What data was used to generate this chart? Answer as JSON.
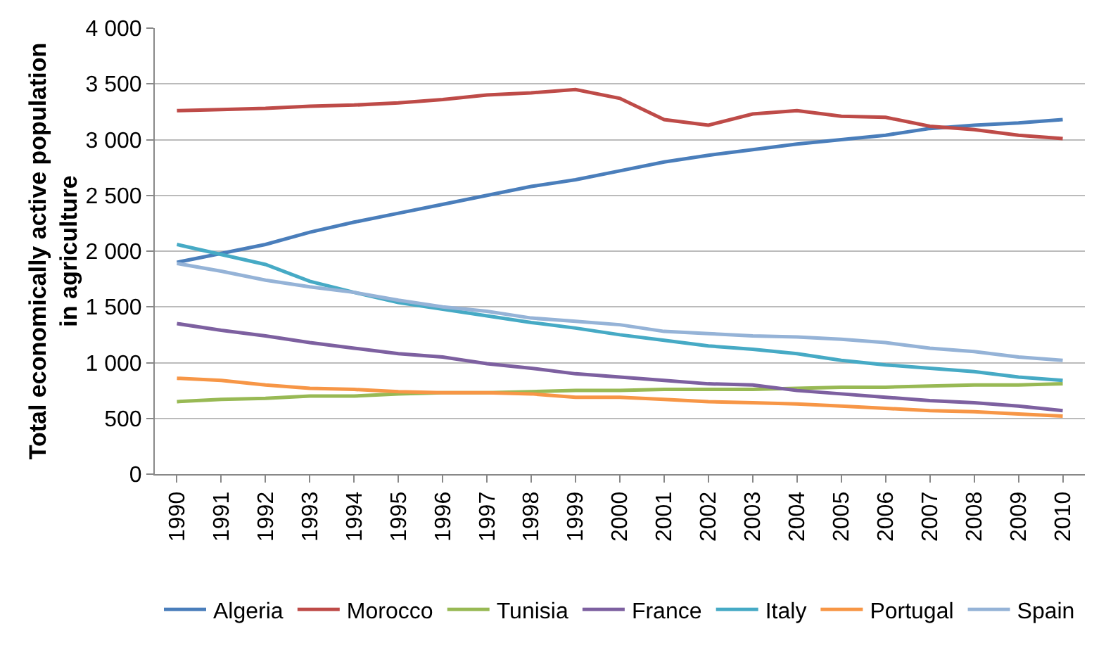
{
  "chart_data": {
    "type": "line",
    "ylabel": "Total economically active population in agriculture",
    "categories": [
      "1990",
      "1991",
      "1992",
      "1993",
      "1994",
      "1995",
      "1996",
      "1997",
      "1998",
      "1999",
      "2000",
      "2001",
      "2002",
      "2003",
      "2004",
      "2005",
      "2006",
      "2007",
      "2008",
      "2009",
      "2010"
    ],
    "series": [
      {
        "name": "Algeria",
        "color": "#4a7ebb",
        "values": [
          1900,
          1980,
          2060,
          2170,
          2260,
          2340,
          2420,
          2500,
          2580,
          2640,
          2720,
          2800,
          2860,
          2910,
          2960,
          3000,
          3040,
          3100,
          3130,
          3150,
          3180
        ]
      },
      {
        "name": "Morocco",
        "color": "#be4b48",
        "values": [
          3260,
          3270,
          3280,
          3300,
          3310,
          3330,
          3360,
          3400,
          3420,
          3450,
          3370,
          3180,
          3130,
          3230,
          3260,
          3210,
          3200,
          3120,
          3090,
          3040,
          3010
        ]
      },
      {
        "name": "Tunisia",
        "color": "#98b954",
        "values": [
          650,
          670,
          680,
          700,
          700,
          720,
          730,
          730,
          740,
          750,
          750,
          760,
          760,
          760,
          770,
          780,
          780,
          790,
          800,
          800,
          810
        ]
      },
      {
        "name": "France",
        "color": "#7d60a0",
        "values": [
          1350,
          1290,
          1240,
          1180,
          1130,
          1080,
          1050,
          990,
          950,
          900,
          870,
          840,
          810,
          800,
          750,
          720,
          690,
          660,
          640,
          610,
          570
        ]
      },
      {
        "name": "Italy",
        "color": "#46aac5",
        "values": [
          2060,
          1970,
          1880,
          1730,
          1630,
          1540,
          1480,
          1420,
          1360,
          1310,
          1250,
          1200,
          1150,
          1120,
          1080,
          1020,
          980,
          950,
          920,
          870,
          840
        ]
      },
      {
        "name": "Portugal",
        "color": "#f79646",
        "values": [
          860,
          840,
          800,
          770,
          760,
          740,
          730,
          730,
          720,
          690,
          690,
          670,
          650,
          640,
          630,
          610,
          590,
          570,
          560,
          540,
          520
        ]
      },
      {
        "name": "Spain",
        "color": "#95b3d7",
        "values": [
          1890,
          1820,
          1740,
          1680,
          1630,
          1560,
          1500,
          1460,
          1400,
          1370,
          1340,
          1280,
          1260,
          1240,
          1230,
          1210,
          1180,
          1130,
          1100,
          1050,
          1020
        ]
      }
    ],
    "ylim": [
      0,
      4000
    ],
    "yticks": [
      {
        "value": 0,
        "label": "0"
      },
      {
        "value": 500,
        "label": "500"
      },
      {
        "value": 1000,
        "label": "1 000"
      },
      {
        "value": 1500,
        "label": "1 500"
      },
      {
        "value": 2000,
        "label": "2 000"
      },
      {
        "value": 2500,
        "label": "2 500"
      },
      {
        "value": 3000,
        "label": "3 000"
      },
      {
        "value": 3500,
        "label": "3 500"
      },
      {
        "value": 4000,
        "label": "4 000"
      }
    ],
    "grid": "y",
    "legend": "bottom",
    "marker": "none",
    "line_style": "solid"
  }
}
